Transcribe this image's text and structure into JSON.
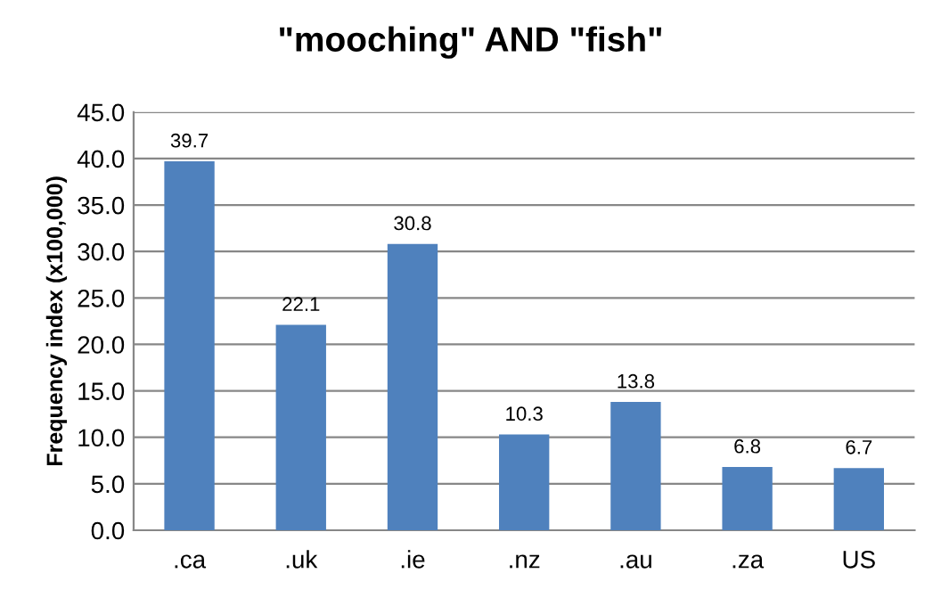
{
  "chart_data": {
    "type": "bar",
    "title": "\"mooching\" AND \"fish\"",
    "ylabel": "Frequency index (x100,000)",
    "categories": [
      ".ca",
      ".uk",
      ".ie",
      ".nz",
      ".au",
      ".za",
      "US"
    ],
    "values": [
      39.7,
      22.1,
      30.8,
      10.3,
      13.8,
      6.8,
      6.7
    ],
    "color": "#4f81bd",
    "data_labels": true,
    "grid": "y",
    "ylim": [
      0,
      45
    ],
    "yticks": [
      {
        "value": 0,
        "label": "0.0"
      },
      {
        "value": 5,
        "label": "5.0"
      },
      {
        "value": 10,
        "label": "10.0"
      },
      {
        "value": 15,
        "label": "15.0"
      },
      {
        "value": 20,
        "label": "20.0"
      },
      {
        "value": 25,
        "label": "25.0"
      },
      {
        "value": 30,
        "label": "30.0"
      },
      {
        "value": 35,
        "label": "35.0"
      },
      {
        "value": 40,
        "label": "40.0"
      },
      {
        "value": 45,
        "label": "45.0"
      }
    ]
  }
}
